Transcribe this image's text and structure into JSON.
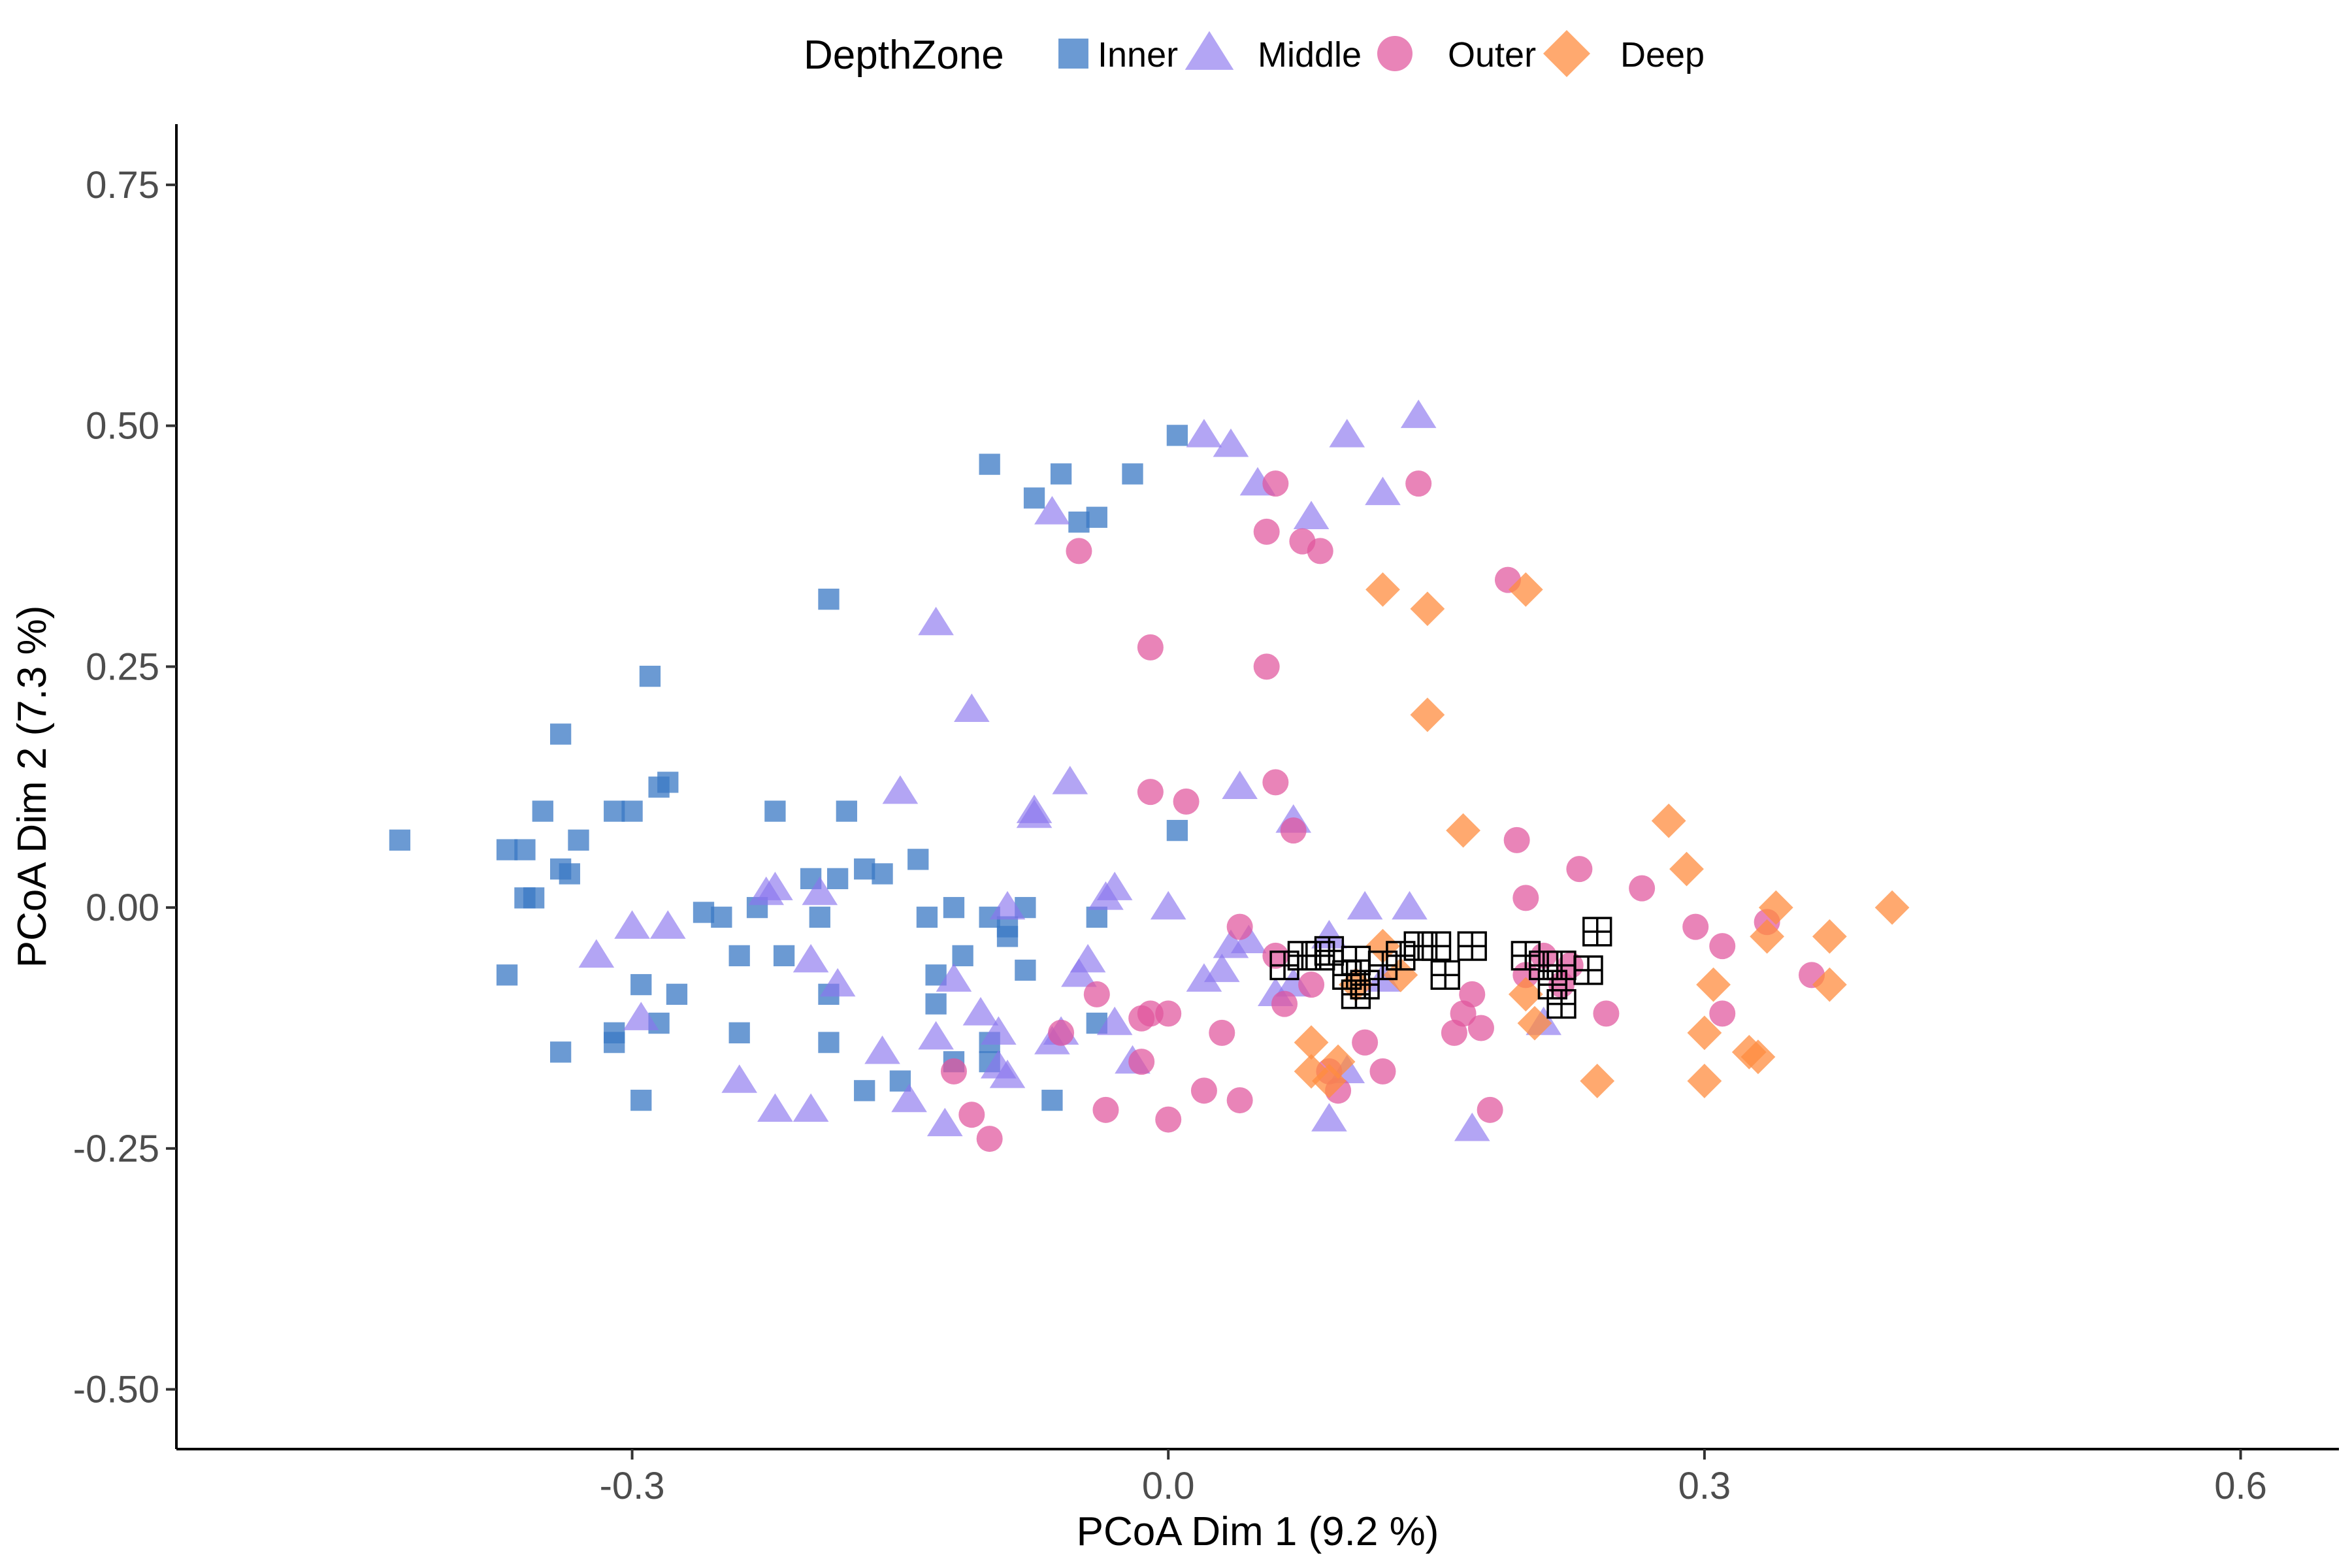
{
  "chart_data": {
    "type": "scatter",
    "xlabel": "PCoA Dim 1 (9.2 %)",
    "ylabel": "PCoA Dim 2 (7.3 %)",
    "xlim": [
      -0.555,
      0.655
    ],
    "ylim": [
      -0.562,
      0.813
    ],
    "xticks": [
      -0.3,
      0.0,
      0.3,
      0.6
    ],
    "xtick_labels": [
      "-0.3",
      "0.0",
      "0.3",
      "0.6"
    ],
    "yticks": [
      0.75,
      0.5,
      0.25,
      0.0,
      -0.25,
      -0.5
    ],
    "ytick_labels": [
      "0.75",
      "0.50",
      "0.25",
      "0.00",
      "-0.25",
      "-0.50"
    ],
    "grid": false,
    "legend": {
      "title": "DepthZone",
      "position": "top"
    },
    "series": [
      {
        "name": "Inner",
        "shape": "square",
        "color": "#3a78c4",
        "points": [
          [
            -0.43,
            0.07
          ],
          [
            -0.37,
            0.06
          ],
          [
            -0.36,
            0.06
          ],
          [
            -0.35,
            0.1
          ],
          [
            -0.34,
            0.04
          ],
          [
            -0.33,
            0.07
          ],
          [
            -0.34,
            0.18
          ],
          [
            -0.36,
            0.01
          ],
          [
            -0.355,
            0.01
          ],
          [
            -0.335,
            0.035
          ],
          [
            -0.31,
            0.1
          ],
          [
            -0.3,
            0.1
          ],
          [
            -0.29,
            0.24
          ],
          [
            -0.285,
            0.125
          ],
          [
            -0.28,
            0.13
          ],
          [
            -0.37,
            -0.07
          ],
          [
            -0.34,
            -0.15
          ],
          [
            -0.31,
            -0.13
          ],
          [
            -0.31,
            -0.14
          ],
          [
            -0.295,
            -0.08
          ],
          [
            -0.295,
            -0.2
          ],
          [
            -0.285,
            -0.12
          ],
          [
            -0.275,
            -0.09
          ],
          [
            -0.26,
            -0.005
          ],
          [
            -0.25,
            -0.01
          ],
          [
            -0.24,
            -0.05
          ],
          [
            -0.24,
            -0.13
          ],
          [
            -0.23,
            0.0
          ],
          [
            -0.22,
            0.1
          ],
          [
            -0.215,
            -0.05
          ],
          [
            -0.2,
            0.03
          ],
          [
            -0.195,
            -0.01
          ],
          [
            -0.19,
            -0.09
          ],
          [
            -0.19,
            -0.14
          ],
          [
            -0.19,
            0.32
          ],
          [
            -0.18,
            0.1
          ],
          [
            -0.185,
            0.03
          ],
          [
            -0.17,
            0.04
          ],
          [
            -0.17,
            -0.19
          ],
          [
            -0.16,
            0.035
          ],
          [
            -0.15,
            -0.18
          ],
          [
            -0.14,
            0.05
          ],
          [
            -0.135,
            -0.01
          ],
          [
            -0.13,
            -0.07
          ],
          [
            -0.13,
            -0.1
          ],
          [
            -0.12,
            -0.16
          ],
          [
            -0.12,
            0.0
          ],
          [
            -0.115,
            -0.05
          ],
          [
            -0.1,
            -0.01
          ],
          [
            -0.1,
            -0.14
          ],
          [
            -0.1,
            -0.16
          ],
          [
            -0.1,
            0.46
          ],
          [
            -0.09,
            -0.02
          ],
          [
            -0.09,
            -0.03
          ],
          [
            -0.08,
            0.0
          ],
          [
            -0.08,
            -0.065
          ],
          [
            -0.075,
            0.425
          ],
          [
            -0.065,
            -0.2
          ],
          [
            -0.06,
            0.45
          ],
          [
            -0.05,
            0.4
          ],
          [
            -0.04,
            0.405
          ],
          [
            -0.04,
            -0.01
          ],
          [
            -0.04,
            -0.12
          ],
          [
            -0.02,
            0.45
          ],
          [
            0.005,
            0.08
          ],
          [
            0.005,
            0.49
          ]
        ]
      },
      {
        "name": "Middle",
        "shape": "triangle",
        "color": "#8b75ee",
        "points": [
          [
            -0.32,
            -0.05
          ],
          [
            -0.3,
            -0.02
          ],
          [
            -0.295,
            -0.115
          ],
          [
            -0.28,
            -0.02
          ],
          [
            -0.24,
            -0.18
          ],
          [
            -0.225,
            0.015
          ],
          [
            -0.22,
            0.02
          ],
          [
            -0.22,
            -0.21
          ],
          [
            -0.2,
            -0.055
          ],
          [
            -0.2,
            -0.21
          ],
          [
            -0.195,
            0.015
          ],
          [
            -0.185,
            -0.08
          ],
          [
            -0.16,
            -0.15
          ],
          [
            -0.15,
            0.12
          ],
          [
            -0.145,
            -0.2
          ],
          [
            -0.13,
            -0.135
          ],
          [
            -0.13,
            0.295
          ],
          [
            -0.125,
            -0.225
          ],
          [
            -0.12,
            -0.075
          ],
          [
            -0.11,
            0.205
          ],
          [
            -0.105,
            -0.11
          ],
          [
            -0.095,
            -0.13
          ],
          [
            -0.095,
            -0.165
          ],
          [
            -0.09,
            -0.175
          ],
          [
            -0.09,
            0.0
          ],
          [
            -0.075,
            0.1
          ],
          [
            -0.075,
            0.095
          ],
          [
            -0.065,
            0.41
          ],
          [
            -0.065,
            -0.14
          ],
          [
            -0.06,
            -0.13
          ],
          [
            -0.055,
            0.13
          ],
          [
            -0.05,
            -0.07
          ],
          [
            -0.045,
            -0.055
          ],
          [
            -0.035,
            0.01
          ],
          [
            -0.03,
            0.02
          ],
          [
            -0.03,
            -0.12
          ],
          [
            -0.02,
            -0.16
          ],
          [
            0.0,
            0.0
          ],
          [
            0.02,
            -0.075
          ],
          [
            0.02,
            0.49
          ],
          [
            0.03,
            -0.065
          ],
          [
            0.035,
            -0.04
          ],
          [
            0.035,
            0.48
          ],
          [
            0.04,
            0.125
          ],
          [
            0.045,
            -0.035
          ],
          [
            0.05,
            0.44
          ],
          [
            0.06,
            -0.09
          ],
          [
            0.07,
            -0.08
          ],
          [
            0.07,
            0.09
          ],
          [
            0.08,
            0.405
          ],
          [
            0.09,
            -0.22
          ],
          [
            0.09,
            -0.03
          ],
          [
            0.1,
            0.49
          ],
          [
            0.1,
            -0.17
          ],
          [
            0.11,
            0.0
          ],
          [
            0.12,
            -0.075
          ],
          [
            0.12,
            0.43
          ],
          [
            0.135,
            0.0
          ],
          [
            0.14,
            0.51
          ],
          [
            0.17,
            -0.23
          ],
          [
            0.21,
            -0.12
          ]
        ]
      },
      {
        "name": "Outer",
        "shape": "circle",
        "color": "#e0559c",
        "points": [
          [
            -0.12,
            -0.17
          ],
          [
            -0.11,
            -0.215
          ],
          [
            -0.1,
            -0.24
          ],
          [
            -0.06,
            -0.13
          ],
          [
            -0.05,
            0.37
          ],
          [
            -0.04,
            -0.09
          ],
          [
            -0.035,
            -0.21
          ],
          [
            -0.015,
            -0.16
          ],
          [
            -0.015,
            -0.115
          ],
          [
            -0.01,
            -0.11
          ],
          [
            -0.01,
            0.27
          ],
          [
            -0.01,
            0.12
          ],
          [
            0.0,
            -0.11
          ],
          [
            0.0,
            -0.22
          ],
          [
            0.01,
            0.11
          ],
          [
            0.02,
            -0.19
          ],
          [
            0.03,
            -0.13
          ],
          [
            0.04,
            -0.2
          ],
          [
            0.04,
            -0.02
          ],
          [
            0.055,
            0.25
          ],
          [
            0.055,
            0.39
          ],
          [
            0.06,
            0.13
          ],
          [
            0.06,
            -0.05
          ],
          [
            0.06,
            0.44
          ],
          [
            0.065,
            -0.1
          ],
          [
            0.07,
            0.08
          ],
          [
            0.075,
            0.38
          ],
          [
            0.08,
            -0.08
          ],
          [
            0.085,
            0.37
          ],
          [
            0.09,
            -0.17
          ],
          [
            0.095,
            -0.19
          ],
          [
            0.11,
            -0.14
          ],
          [
            0.12,
            -0.17
          ],
          [
            0.14,
            0.44
          ],
          [
            0.16,
            -0.13
          ],
          [
            0.165,
            -0.11
          ],
          [
            0.17,
            -0.09
          ],
          [
            0.175,
            -0.125
          ],
          [
            0.18,
            -0.21
          ],
          [
            0.19,
            0.34
          ],
          [
            0.195,
            0.07
          ],
          [
            0.2,
            0.01
          ],
          [
            0.2,
            -0.07
          ],
          [
            0.21,
            -0.05
          ],
          [
            0.22,
            -0.08
          ],
          [
            0.225,
            -0.06
          ],
          [
            0.23,
            0.04
          ],
          [
            0.245,
            -0.11
          ],
          [
            0.265,
            0.02
          ],
          [
            0.295,
            -0.02
          ],
          [
            0.31,
            -0.11
          ],
          [
            0.31,
            -0.04
          ],
          [
            0.335,
            -0.015
          ],
          [
            0.36,
            -0.07
          ]
        ]
      },
      {
        "name": "Deep",
        "shape": "diamond",
        "color": "#ff8c3f",
        "points": [
          [
            0.08,
            -0.14
          ],
          [
            0.08,
            -0.17
          ],
          [
            0.09,
            -0.18
          ],
          [
            0.095,
            -0.16
          ],
          [
            0.105,
            -0.08
          ],
          [
            0.12,
            -0.04
          ],
          [
            0.12,
            0.33
          ],
          [
            0.13,
            -0.07
          ],
          [
            0.145,
            0.31
          ],
          [
            0.145,
            0.2
          ],
          [
            0.165,
            0.08
          ],
          [
            0.2,
            0.33
          ],
          [
            0.2,
            -0.09
          ],
          [
            0.205,
            -0.12
          ],
          [
            0.24,
            -0.18
          ],
          [
            0.28,
            0.09
          ],
          [
            0.29,
            0.04
          ],
          [
            0.3,
            -0.13
          ],
          [
            0.305,
            -0.08
          ],
          [
            0.3,
            -0.18
          ],
          [
            0.325,
            -0.15
          ],
          [
            0.33,
            -0.155
          ],
          [
            0.335,
            -0.03
          ],
          [
            0.34,
            0.0
          ],
          [
            0.37,
            -0.08
          ],
          [
            0.37,
            -0.03
          ],
          [
            0.405,
            0.0
          ]
        ]
      },
      {
        "name": "",
        "shape": "boxed-cross",
        "color": "#000000",
        "points": [
          [
            0.065,
            -0.06
          ],
          [
            0.075,
            -0.05
          ],
          [
            0.085,
            -0.05
          ],
          [
            0.09,
            -0.045
          ],
          [
            0.1,
            -0.07
          ],
          [
            0.105,
            -0.055
          ],
          [
            0.105,
            -0.09
          ],
          [
            0.11,
            -0.08
          ],
          [
            0.12,
            -0.06
          ],
          [
            0.13,
            -0.05
          ],
          [
            0.14,
            -0.04
          ],
          [
            0.15,
            -0.04
          ],
          [
            0.155,
            -0.07
          ],
          [
            0.17,
            -0.04
          ],
          [
            0.2,
            -0.05
          ],
          [
            0.21,
            -0.06
          ],
          [
            0.215,
            -0.08
          ],
          [
            0.22,
            -0.1
          ],
          [
            0.22,
            -0.06
          ],
          [
            0.235,
            -0.065
          ],
          [
            0.24,
            -0.025
          ]
        ]
      }
    ]
  }
}
